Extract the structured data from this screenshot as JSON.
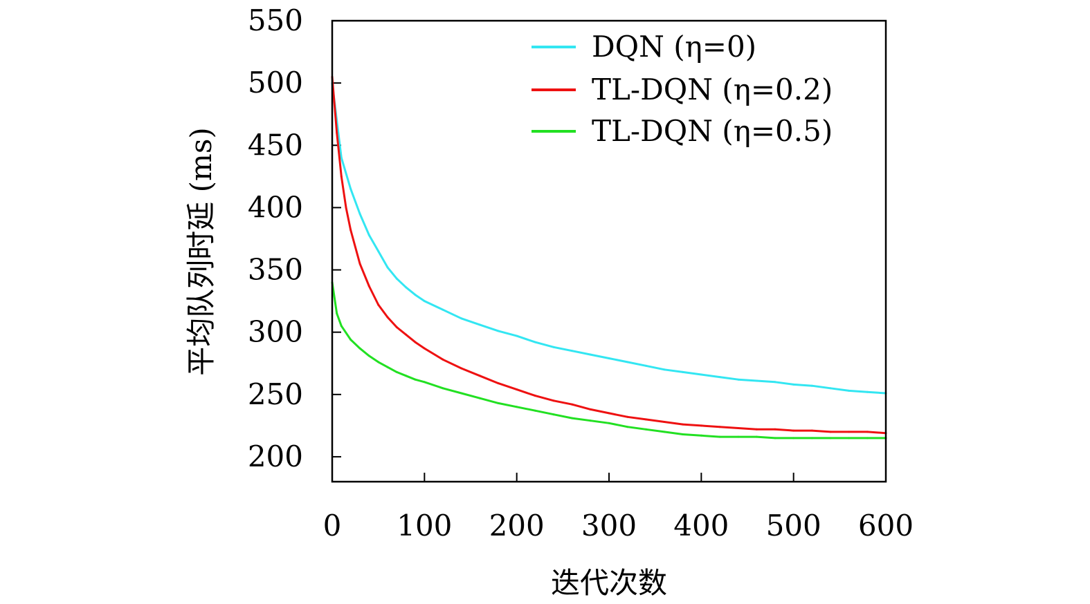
{
  "chart_data": {
    "type": "line",
    "xlabel": "迭代次数",
    "ylabel": "平均队列时延 (ms)",
    "xlim": [
      0,
      600
    ],
    "ylim": [
      180,
      550
    ],
    "xticks": [
      0,
      100,
      200,
      300,
      400,
      500,
      600
    ],
    "yticks": [
      200,
      250,
      300,
      350,
      400,
      450,
      500,
      550
    ],
    "grid": false,
    "legend": "top-right",
    "series": [
      {
        "name": "DQN (η=0)",
        "color": "#33e6f2",
        "x": [
          0,
          10,
          20,
          30,
          40,
          50,
          60,
          70,
          80,
          90,
          100,
          120,
          140,
          160,
          180,
          200,
          220,
          240,
          260,
          280,
          300,
          320,
          340,
          360,
          380,
          400,
          420,
          440,
          460,
          480,
          500,
          520,
          540,
          560,
          580,
          600
        ],
        "y": [
          500,
          440,
          415,
          395,
          378,
          365,
          352,
          343,
          336,
          330,
          325,
          318,
          311,
          306,
          301,
          297,
          292,
          288,
          285,
          282,
          279,
          276,
          273,
          270,
          268,
          266,
          264,
          262,
          261,
          260,
          258,
          257,
          255,
          253,
          252,
          251
        ]
      },
      {
        "name": "TL-DQN (η=0.2)",
        "color": "#ee1111",
        "x": [
          0,
          5,
          10,
          15,
          20,
          30,
          40,
          50,
          60,
          70,
          80,
          90,
          100,
          120,
          140,
          160,
          180,
          200,
          220,
          240,
          260,
          280,
          300,
          320,
          340,
          360,
          380,
          400,
          420,
          440,
          460,
          480,
          500,
          520,
          540,
          560,
          580,
          600
        ],
        "y": [
          505,
          460,
          425,
          400,
          382,
          355,
          337,
          322,
          312,
          304,
          298,
          292,
          287,
          278,
          271,
          265,
          259,
          254,
          249,
          245,
          242,
          238,
          235,
          232,
          230,
          228,
          226,
          225,
          224,
          223,
          222,
          222,
          221,
          221,
          220,
          220,
          220,
          219
        ]
      },
      {
        "name": "TL-DQN (η=0.5)",
        "color": "#22e022",
        "x": [
          0,
          5,
          10,
          20,
          30,
          40,
          50,
          60,
          70,
          80,
          90,
          100,
          120,
          140,
          160,
          180,
          200,
          220,
          240,
          260,
          280,
          300,
          320,
          340,
          360,
          380,
          400,
          420,
          440,
          460,
          480,
          500,
          520,
          540,
          560,
          580,
          600
        ],
        "y": [
          340,
          315,
          305,
          294,
          287,
          281,
          276,
          272,
          268,
          265,
          262,
          260,
          255,
          251,
          247,
          243,
          240,
          237,
          234,
          231,
          229,
          227,
          224,
          222,
          220,
          218,
          217,
          216,
          216,
          216,
          215,
          215,
          215,
          215,
          215,
          215,
          215
        ]
      }
    ]
  }
}
